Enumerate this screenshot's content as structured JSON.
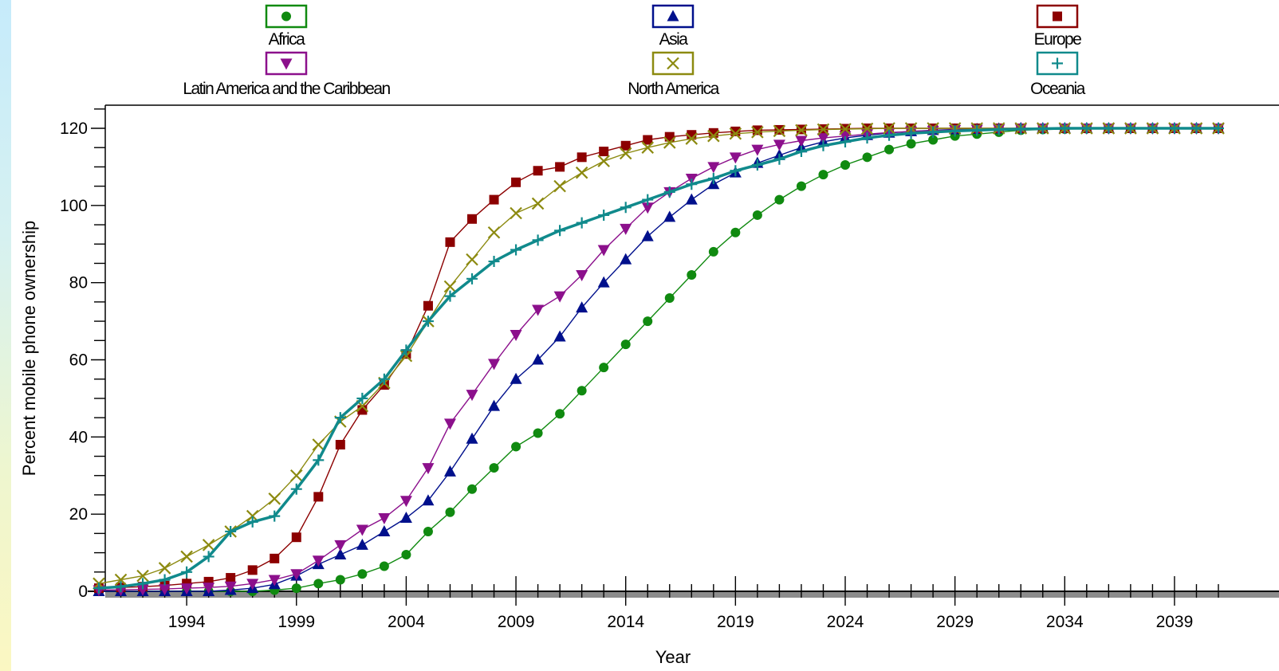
{
  "colors": {
    "Africa": "#108a10",
    "Asia": "#00108c",
    "Europe": "#8c0000",
    "Latin America and the Caribbean": "#8c108c",
    "North America": "#8c8a10",
    "Oceania": "#108a8c"
  },
  "chart_data": {
    "type": "line",
    "xlabel": "Year",
    "ylabel": "Percent mobile phone ownership",
    "xlim": [
      1990,
      2041
    ],
    "ylim": [
      0,
      120
    ],
    "xticks": [
      1994,
      1999,
      2004,
      2009,
      2014,
      2019,
      2024,
      2029,
      2034,
      2039
    ],
    "yticks": [
      0,
      20,
      40,
      60,
      80,
      100,
      120
    ],
    "legend_position": "top",
    "legend": [
      "Africa",
      "Asia",
      "Europe",
      "Latin America and the Caribbean",
      "North America",
      "Oceania"
    ],
    "x": [
      1990,
      1991,
      1992,
      1993,
      1994,
      1995,
      1996,
      1997,
      1998,
      1999,
      2000,
      2001,
      2002,
      2003,
      2004,
      2005,
      2006,
      2007,
      2008,
      2009,
      2010,
      2011,
      2012,
      2013,
      2014,
      2015,
      2016,
      2017,
      2018,
      2019,
      2020,
      2021,
      2022,
      2023,
      2024,
      2025,
      2026,
      2027,
      2028,
      2029,
      2030,
      2031,
      2032,
      2033,
      2034,
      2035,
      2036,
      2037,
      2038,
      2039,
      2040,
      2041
    ],
    "series": [
      {
        "name": "Africa",
        "marker": "circle",
        "values": [
          0,
          0,
          0,
          0,
          0,
          0,
          0,
          0,
          0.3,
          0.8,
          2,
          3,
          4.5,
          6.5,
          9.5,
          15.5,
          20.5,
          26.5,
          32,
          37.5,
          41,
          46,
          52,
          58,
          64,
          70,
          76,
          82,
          88,
          93,
          97.5,
          101.5,
          105,
          108,
          110.5,
          112.5,
          114.5,
          116,
          117,
          118,
          118.5,
          119,
          119.5,
          119.7,
          119.8,
          119.9,
          120,
          120,
          120,
          120,
          120,
          120
        ]
      },
      {
        "name": "Asia",
        "marker": "triangle-up",
        "values": [
          0,
          0,
          0,
          0,
          0,
          0,
          0.3,
          0.8,
          1.8,
          4,
          7,
          9.5,
          12,
          15.5,
          19,
          23.5,
          31,
          39.5,
          48,
          55,
          60,
          66,
          73.5,
          80,
          86,
          92,
          97,
          101.5,
          105.5,
          108.5,
          111,
          113,
          115,
          116.5,
          117.5,
          118.2,
          118.8,
          119.2,
          119.5,
          119.7,
          119.8,
          119.9,
          120,
          120,
          120,
          120,
          120,
          120,
          120,
          120,
          120,
          120
        ]
      },
      {
        "name": "Europe",
        "marker": "square",
        "values": [
          0.8,
          1,
          1.2,
          1.5,
          2,
          2.5,
          3.5,
          5.5,
          8.5,
          14,
          24.5,
          38,
          47,
          53.5,
          61.5,
          74,
          90.5,
          96.5,
          101.5,
          106,
          109,
          110,
          112.5,
          114,
          115.5,
          117,
          117.8,
          118.3,
          118.8,
          119.2,
          119.5,
          119.6,
          119.7,
          119.8,
          119.9,
          120,
          120,
          120,
          120,
          120,
          120,
          120,
          120,
          120,
          120,
          120,
          120,
          120,
          120,
          120,
          120,
          120
        ]
      },
      {
        "name": "Latin America and the Caribbean",
        "marker": "triangle-down",
        "values": [
          0.3,
          0.4,
          0.5,
          0.6,
          0.8,
          1,
          1.3,
          2,
          3,
          4.5,
          8,
          12,
          16,
          19,
          23.5,
          32,
          43.5,
          51,
          59,
          66.5,
          73,
          76.5,
          82,
          88.5,
          94,
          99.5,
          103.5,
          107,
          110,
          112.5,
          114.5,
          115.8,
          116.8,
          117.5,
          118,
          118.5,
          118.9,
          119.2,
          119.4,
          119.6,
          119.7,
          119.8,
          119.9,
          120,
          120,
          120,
          120,
          120,
          120,
          120,
          120,
          120
        ]
      },
      {
        "name": "North America",
        "marker": "x",
        "values": [
          2,
          3,
          4,
          6,
          9,
          12,
          15.5,
          19.5,
          24,
          30,
          38,
          44,
          48,
          54,
          61,
          70,
          79,
          86,
          93,
          98,
          100.5,
          105,
          108.5,
          111.5,
          113.5,
          115,
          116.3,
          117.3,
          118,
          118.6,
          119,
          119.3,
          119.5,
          119.7,
          119.8,
          119.9,
          120,
          120,
          120,
          120,
          120,
          120,
          120,
          120,
          120,
          120,
          120,
          120,
          120,
          120,
          120,
          120
        ]
      },
      {
        "name": "Oceania",
        "marker": "plus",
        "values": [
          0.8,
          1.2,
          2,
          3,
          5,
          9,
          15.5,
          18,
          19.5,
          26.5,
          34,
          45,
          50,
          55,
          62.5,
          70,
          76.5,
          81,
          85.5,
          88.5,
          91,
          93.5,
          95.5,
          97.5,
          99.5,
          101.5,
          103.5,
          105.5,
          107,
          109,
          110.5,
          112,
          114,
          115.5,
          116.5,
          117.5,
          118.2,
          118.7,
          119,
          119.3,
          119.5,
          119.7,
          119.8,
          119.9,
          120,
          120,
          120,
          120,
          120,
          120,
          120,
          120
        ]
      }
    ]
  }
}
